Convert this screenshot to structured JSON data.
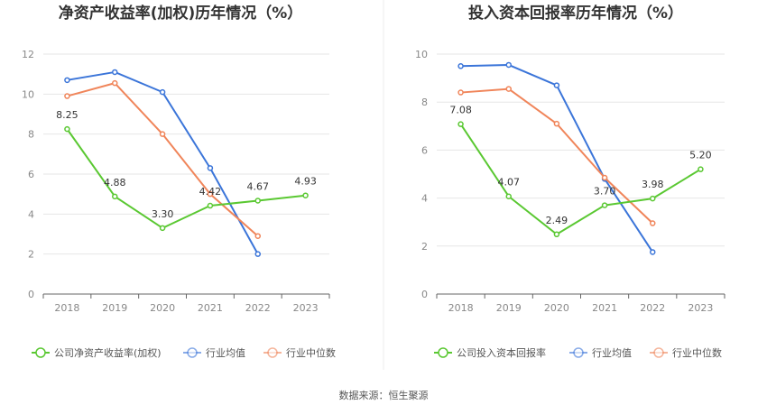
{
  "source": "数据来源：恒生聚源",
  "chart_data": [
    {
      "type": "line",
      "title": "净资产收益率(加权)历年情况（%）",
      "categories": [
        "2018",
        "2019",
        "2020",
        "2021",
        "2022",
        "2023"
      ],
      "ylim": [
        0,
        12
      ],
      "yticks": [
        0,
        2,
        4,
        6,
        8,
        10,
        12
      ],
      "grid": true,
      "legend": "bottom",
      "series": [
        {
          "name": "公司净资产收益率(加权)",
          "color": "#5ac832",
          "values": [
            8.25,
            4.88,
            3.3,
            4.42,
            4.67,
            4.93
          ],
          "labels": [
            "8.25",
            "4.88",
            "3.30",
            "4.42",
            "4.67",
            "4.93"
          ]
        },
        {
          "name": "行业均值",
          "color": "#3b75d9",
          "values": [
            10.7,
            11.1,
            10.1,
            6.3,
            2.0,
            null
          ]
        },
        {
          "name": "行业中位数",
          "color": "#f0855a",
          "values": [
            9.9,
            10.55,
            8.0,
            5.0,
            2.9,
            null
          ]
        }
      ]
    },
    {
      "type": "line",
      "title": "投入资本回报率历年情况（%）",
      "categories": [
        "2018",
        "2019",
        "2020",
        "2021",
        "2022",
        "2023"
      ],
      "ylim": [
        0,
        10
      ],
      "yticks": [
        0,
        2,
        4,
        6,
        8,
        10
      ],
      "grid": true,
      "legend": "bottom",
      "series": [
        {
          "name": "公司投入资本回报率",
          "color": "#5ac832",
          "values": [
            7.08,
            4.07,
            2.49,
            3.7,
            3.98,
            5.2
          ],
          "labels": [
            "7.08",
            "4.07",
            "2.49",
            "3.70",
            "3.98",
            "5.20"
          ]
        },
        {
          "name": "行业均值",
          "color": "#3b75d9",
          "values": [
            9.5,
            9.55,
            8.7,
            4.8,
            1.75,
            null
          ]
        },
        {
          "name": "行业中位数",
          "color": "#f0855a",
          "values": [
            8.4,
            8.55,
            7.1,
            4.85,
            2.95,
            null
          ]
        }
      ]
    }
  ]
}
